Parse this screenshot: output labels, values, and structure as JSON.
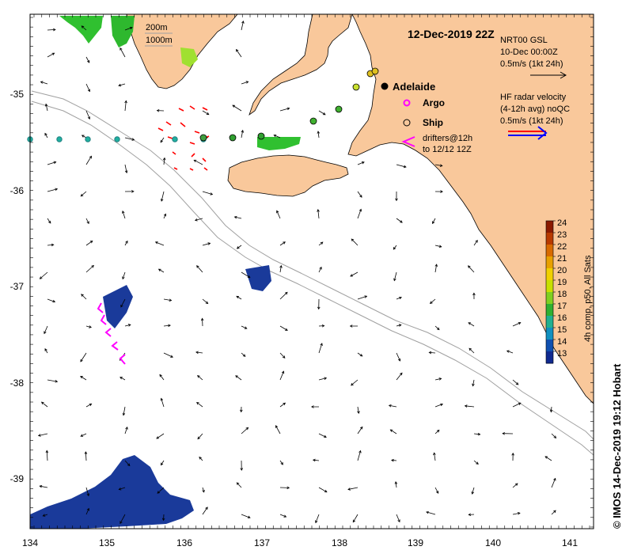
{
  "title": "12-Dec-2019 22Z",
  "credit": "© IMOS 14-Dec-2019 19:12 Hobart",
  "city": "Adelaide",
  "legend": {
    "argo": "Argo",
    "ship": "Ship",
    "drifters_line1": "drifters@12h",
    "drifters_line2": "to 12/12 12Z",
    "isobath_200": "200m",
    "isobath_1000": "1000m",
    "gsl_line1": "NRT00 GSL",
    "gsl_line2": "10-Dec 00:00Z",
    "gsl_line3": "0.5m/s (1kt 24h)",
    "hf_line1": "HF radar velocity",
    "hf_line2": "(4-12h avg) noQC",
    "hf_line3": "0.5m/s (1kt 24h)"
  },
  "colorbar": {
    "label": "4h comp, p50, All Sats",
    "ticks": [
      "24",
      "23",
      "22",
      "21",
      "20",
      "19",
      "18",
      "17",
      "16",
      "15",
      "14",
      "13"
    ],
    "colors": [
      "#8b1a00",
      "#b83a00",
      "#d86a00",
      "#e8a000",
      "#f0d000",
      "#c8e000",
      "#80d020",
      "#30b030",
      "#20b090",
      "#1090c0",
      "#1050b0",
      "#102a90"
    ]
  },
  "axes": {
    "x_ticks": [
      "134",
      "135",
      "136",
      "137",
      "138",
      "139",
      "140",
      "141"
    ],
    "y_ticks": [
      "-35",
      "-36",
      "-37",
      "-38",
      "-39"
    ]
  },
  "colors": {
    "land": "#f9c89b",
    "argo": "#ff00ff",
    "ship": "#000000",
    "drifter": "#ff00ff",
    "hf_red": "#ff0000",
    "hf_blue": "#0000ff",
    "isobath": "#a0a0a0",
    "sst_cold": "#1a3a9a",
    "sst_green": "#30c030"
  }
}
